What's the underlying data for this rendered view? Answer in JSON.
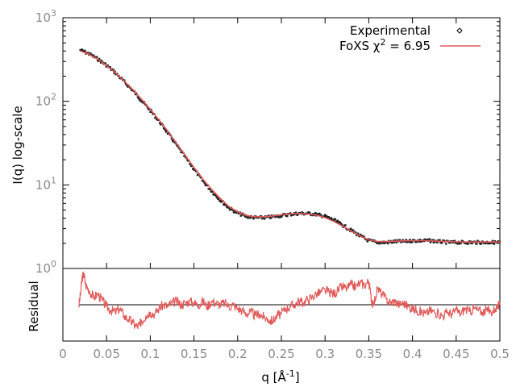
{
  "chart_data": [
    {
      "type": "scatter",
      "title": "",
      "xlabel": "",
      "ylabel": "I(q) log-scale",
      "y_scale": "log",
      "xlim": [
        0,
        0.5
      ],
      "ylim": [
        1,
        1000
      ],
      "y_ticks": [
        {
          "value": 1,
          "base": "10",
          "exp": "0"
        },
        {
          "value": 10,
          "base": "10",
          "exp": "1"
        },
        {
          "value": 100,
          "base": "10",
          "exp": "2"
        },
        {
          "value": 1000,
          "base": "10",
          "exp": "3"
        }
      ],
      "grid": false,
      "legend_position": "top-right",
      "series": [
        {
          "name": "Experimental",
          "style": "black scatter points",
          "color": "#222222",
          "x": [
            0.02,
            0.03,
            0.04,
            0.05,
            0.06,
            0.07,
            0.08,
            0.09,
            0.1,
            0.11,
            0.12,
            0.13,
            0.14,
            0.15,
            0.16,
            0.17,
            0.18,
            0.19,
            0.2,
            0.21,
            0.22,
            0.23,
            0.24,
            0.25,
            0.26,
            0.27,
            0.28,
            0.29,
            0.3,
            0.31,
            0.32,
            0.33,
            0.34,
            0.35,
            0.36,
            0.37,
            0.38,
            0.39,
            0.4,
            0.41,
            0.42,
            0.43,
            0.44,
            0.45,
            0.46,
            0.47,
            0.48,
            0.49,
            0.5
          ],
          "y": [
            410,
            370,
            320,
            270,
            220,
            172,
            135,
            102,
            78,
            58,
            42,
            30,
            21.5,
            15.5,
            11.2,
            8.5,
            6.6,
            5.3,
            4.6,
            4.2,
            4.05,
            4.05,
            4.15,
            4.3,
            4.45,
            4.55,
            4.55,
            4.45,
            4.2,
            3.8,
            3.3,
            2.85,
            2.45,
            2.15,
            2.05,
            2.05,
            2.1,
            2.1,
            2.15,
            2.15,
            2.15,
            2.1,
            2.05,
            2.05,
            2.05,
            2.05,
            2.05,
            2.05,
            2.05
          ]
        },
        {
          "name": "FoXS χ² = 6.95",
          "style": "red line",
          "color": "#e05a5a",
          "x": [
            0.02,
            0.03,
            0.04,
            0.05,
            0.06,
            0.07,
            0.08,
            0.09,
            0.1,
            0.11,
            0.12,
            0.13,
            0.14,
            0.15,
            0.16,
            0.17,
            0.18,
            0.19,
            0.2,
            0.21,
            0.22,
            0.23,
            0.24,
            0.25,
            0.26,
            0.27,
            0.28,
            0.29,
            0.3,
            0.31,
            0.32,
            0.33,
            0.34,
            0.35,
            0.36,
            0.37,
            0.38,
            0.39,
            0.4,
            0.41,
            0.42,
            0.43,
            0.44,
            0.45,
            0.46,
            0.47,
            0.48,
            0.49,
            0.5
          ],
          "y": [
            400,
            365,
            318,
            268,
            220,
            175,
            138,
            106,
            80,
            60,
            44,
            31.5,
            22.5,
            16.2,
            11.8,
            8.9,
            6.9,
            5.5,
            4.75,
            4.3,
            4.15,
            4.15,
            4.25,
            4.4,
            4.5,
            4.55,
            4.5,
            4.35,
            4.05,
            3.65,
            3.2,
            2.8,
            2.45,
            2.2,
            2.1,
            2.1,
            2.12,
            2.14,
            2.15,
            2.15,
            2.14,
            2.12,
            2.1,
            2.08,
            2.07,
            2.07,
            2.07,
            2.07,
            2.07
          ]
        }
      ],
      "legend": {
        "entries": [
          {
            "label": "Experimental",
            "symbol": "point"
          },
          {
            "label_main": "FoXS χ",
            "label_sup": "2",
            "label_tail": " = 6.95",
            "symbol": "line"
          }
        ]
      }
    },
    {
      "type": "line",
      "title": "",
      "xlabel_main": "q [Å",
      "xlabel_sup": "-1",
      "xlabel_tail": "]",
      "ylabel": "Residual",
      "xlim": [
        0,
        0.5
      ],
      "x_ticks": [
        "0",
        "0.05",
        "0.1",
        "0.15",
        "0.2",
        "0.25",
        "0.3",
        "0.35",
        "0.4",
        "0.45",
        "0.5"
      ],
      "ylim": [
        -1,
        1
      ],
      "y_ticks": [],
      "zero_line": true,
      "zero_line_color": "#000000",
      "series": [
        {
          "color": "#e05a5a",
          "x": [
            0.018,
            0.02,
            0.022,
            0.024,
            0.026,
            0.03,
            0.035,
            0.04,
            0.045,
            0.05,
            0.055,
            0.06,
            0.065,
            0.07,
            0.075,
            0.08,
            0.085,
            0.088,
            0.09,
            0.095,
            0.1,
            0.105,
            0.11,
            0.115,
            0.12,
            0.125,
            0.13,
            0.135,
            0.14,
            0.145,
            0.15,
            0.155,
            0.16,
            0.165,
            0.17,
            0.175,
            0.18,
            0.185,
            0.19,
            0.195,
            0.2,
            0.205,
            0.21,
            0.215,
            0.22,
            0.225,
            0.23,
            0.235,
            0.24,
            0.245,
            0.25,
            0.255,
            0.26,
            0.265,
            0.27,
            0.275,
            0.28,
            0.285,
            0.29,
            0.295,
            0.3,
            0.305,
            0.31,
            0.315,
            0.32,
            0.325,
            0.33,
            0.335,
            0.34,
            0.345,
            0.35,
            0.352,
            0.355,
            0.36,
            0.365,
            0.37,
            0.375,
            0.38,
            0.385,
            0.39,
            0.395,
            0.4,
            0.405,
            0.41,
            0.415,
            0.42,
            0.425,
            0.43,
            0.435,
            0.44,
            0.445,
            0.45,
            0.455,
            0.46,
            0.465,
            0.47,
            0.475,
            0.48,
            0.485,
            0.49,
            0.495,
            0.5
          ],
          "y": [
            -0.05,
            0.25,
            0.75,
            0.85,
            0.55,
            0.4,
            0.2,
            0.3,
            0.12,
            -0.05,
            -0.15,
            -0.2,
            -0.1,
            -0.3,
            -0.4,
            -0.5,
            -0.6,
            -0.55,
            -0.45,
            -0.3,
            -0.2,
            -0.25,
            -0.1,
            0.0,
            -0.05,
            0.05,
            0.1,
            0.0,
            0.05,
            0.1,
            0.05,
            0.0,
            0.1,
            -0.05,
            0.1,
            0.05,
            0.0,
            0.05,
            -0.05,
            0.0,
            -0.1,
            -0.15,
            -0.25,
            -0.2,
            -0.3,
            -0.25,
            -0.35,
            -0.4,
            -0.45,
            -0.3,
            -0.25,
            -0.1,
            -0.05,
            0.0,
            0.1,
            0.05,
            0.15,
            0.2,
            0.3,
            0.35,
            0.4,
            0.35,
            0.3,
            0.4,
            0.5,
            0.45,
            0.55,
            0.5,
            0.6,
            0.55,
            0.65,
            0.3,
            -0.05,
            0.45,
            0.3,
            0.15,
            0.05,
            0.1,
            0.0,
            0.05,
            -0.05,
            -0.1,
            -0.15,
            -0.2,
            -0.25,
            -0.15,
            -0.2,
            -0.25,
            -0.3,
            -0.2,
            -0.25,
            -0.15,
            -0.25,
            -0.1,
            -0.2,
            -0.1,
            -0.15,
            -0.2,
            -0.15,
            -0.2,
            -0.1,
            0.0
          ]
        }
      ]
    }
  ]
}
